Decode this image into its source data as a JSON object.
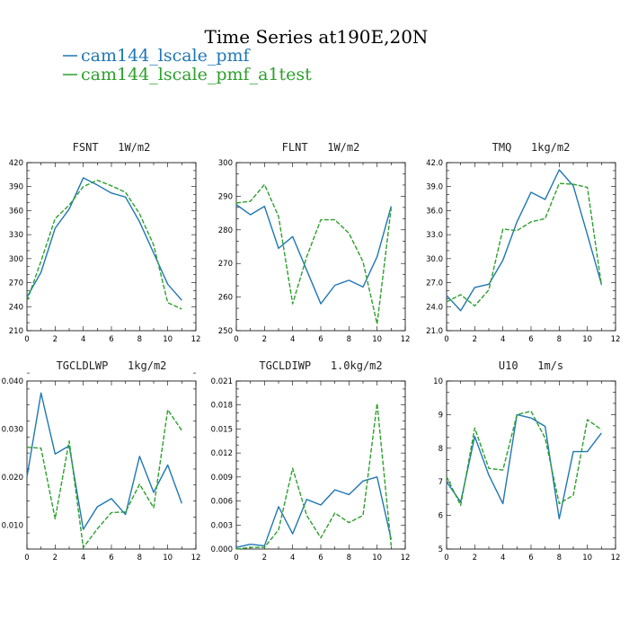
{
  "page": {
    "title": "Time Series at190E,20N"
  },
  "legend": [
    {
      "label": "cam144_lscale_pmf",
      "color": "#1f77b4",
      "dash": "solid"
    },
    {
      "label": "cam144_lscale_pmf_a1test",
      "color": "#2ca02c",
      "dash": "dashed"
    }
  ],
  "chart_data": [
    {
      "type": "line",
      "title": "FSNT   1W/m2",
      "x": [
        0,
        1,
        2,
        3,
        4,
        5,
        6,
        7,
        8,
        9,
        10,
        11
      ],
      "xlim": [
        0,
        12
      ],
      "xticks": [
        "0",
        "2",
        "4",
        "6",
        "8",
        "10",
        "12"
      ],
      "ylim": [
        210,
        420
      ],
      "yticks": [
        "210",
        "240",
        "270",
        "300",
        "330",
        "360",
        "390",
        "420"
      ],
      "series": [
        {
          "color": "#1f77b4",
          "values": [
            252,
            283,
            338,
            362,
            401,
            392,
            382,
            377,
            346,
            307,
            268,
            248
          ]
        },
        {
          "color": "#2ca02c",
          "values": [
            247,
            297,
            350,
            367,
            390,
            398,
            391,
            383,
            356,
            317,
            245,
            237
          ]
        }
      ]
    },
    {
      "type": "line",
      "title": "FLNT   1W/m2",
      "x": [
        0,
        1,
        2,
        3,
        4,
        5,
        6,
        7,
        8,
        9,
        10,
        11
      ],
      "xlim": [
        0,
        12
      ],
      "xticks": [
        "0",
        "2",
        "4",
        "6",
        "8",
        "10",
        "12"
      ],
      "ylim": [
        250,
        300
      ],
      "yticks": [
        "250",
        "260",
        "270",
        "280",
        "290",
        "300"
      ],
      "series": [
        {
          "color": "#1f77b4",
          "values": [
            287.5,
            284.5,
            287,
            274.5,
            278,
            268,
            258,
            263.5,
            265,
            263,
            272,
            287
          ]
        },
        {
          "color": "#2ca02c",
          "values": [
            288,
            288.5,
            293.5,
            284,
            258,
            272,
            283,
            283,
            279,
            270.5,
            252,
            286.5
          ]
        }
      ]
    },
    {
      "type": "line",
      "title": "TMQ   1kg/m2",
      "x": [
        0,
        1,
        2,
        3,
        4,
        5,
        6,
        7,
        8,
        9,
        10,
        11
      ],
      "xlim": [
        0,
        12
      ],
      "xticks": [
        "0",
        "2",
        "4",
        "6",
        "8",
        "10",
        "12"
      ],
      "ylim": [
        21.0,
        42.0
      ],
      "yticks": [
        "21.0",
        "24.0",
        "27.0",
        "30.0",
        "33.0",
        "36.0",
        "39.0",
        "42.0"
      ],
      "series": [
        {
          "color": "#1f77b4",
          "values": [
            25.4,
            23.5,
            26.4,
            26.8,
            29.8,
            34.6,
            38.3,
            37.4,
            41.1,
            39.1,
            33.0,
            26.8
          ]
        },
        {
          "color": "#2ca02c",
          "values": [
            24.6,
            25.5,
            24.1,
            26.1,
            33.7,
            33.5,
            34.6,
            35.0,
            39.4,
            39.3,
            38.9,
            26.7
          ]
        }
      ]
    },
    {
      "type": "line",
      "title": "TGCLDLWP   1kg/m2",
      "x": [
        0,
        1,
        2,
        3,
        4,
        5,
        6,
        7,
        8,
        9,
        10,
        11
      ],
      "xlim": [
        0,
        12
      ],
      "xticks": [
        "0",
        "2",
        "4",
        "6",
        "8",
        "10",
        "12"
      ],
      "ylim": [
        0.005,
        0.04
      ],
      "yticks": [
        "0.010",
        "0.020",
        "0.030",
        "0.040"
      ],
      "series": [
        {
          "color": "#1f77b4",
          "values": [
            0.02,
            0.0375,
            0.0248,
            0.0265,
            0.0091,
            0.0138,
            0.0155,
            0.0122,
            0.0243,
            0.0168,
            0.0225,
            0.0145
          ]
        },
        {
          "color": "#2ca02c",
          "values": [
            0.0262,
            0.026,
            0.0113,
            0.0275,
            0.0053,
            0.0092,
            0.0126,
            0.0127,
            0.0185,
            0.0136,
            0.034,
            0.0297
          ]
        }
      ]
    },
    {
      "type": "line",
      "title": "TGCLDIWP   1.0kg/m2",
      "x": [
        0,
        1,
        2,
        3,
        4,
        5,
        6,
        7,
        8,
        9,
        10,
        11
      ],
      "xlim": [
        0,
        12
      ],
      "xticks": [
        "0",
        "2",
        "4",
        "6",
        "8",
        "10",
        "12"
      ],
      "ylim": [
        0.0,
        0.021
      ],
      "yticks": [
        "0.000",
        "0.003",
        "0.006",
        "0.009",
        "0.012",
        "0.015",
        "0.018",
        "0.021"
      ],
      "series": [
        {
          "color": "#1f77b4",
          "values": [
            0.0002,
            0.0006,
            0.0004,
            0.0053,
            0.0019,
            0.0062,
            0.0055,
            0.0074,
            0.0068,
            0.0085,
            0.009,
            0.0012
          ]
        },
        {
          "color": "#2ca02c",
          "values": [
            0.0,
            0.0002,
            0.0002,
            0.0024,
            0.0101,
            0.0042,
            0.0014,
            0.0045,
            0.0033,
            0.0042,
            0.0182,
            0.0004
          ]
        }
      ]
    },
    {
      "type": "line",
      "title": "U10   1m/s",
      "x": [
        0,
        1,
        2,
        3,
        4,
        5,
        6,
        7,
        8,
        9,
        10,
        11
      ],
      "xlim": [
        0,
        12
      ],
      "xticks": [
        "0",
        "2",
        "4",
        "6",
        "8",
        "10",
        "12"
      ],
      "ylim": [
        5,
        10
      ],
      "yticks": [
        "5",
        "6",
        "7",
        "8",
        "9",
        "10"
      ],
      "series": [
        {
          "color": "#1f77b4",
          "values": [
            7.0,
            6.4,
            8.35,
            7.2,
            6.35,
            9.0,
            8.9,
            8.65,
            5.9,
            7.9,
            7.9,
            8.45
          ]
        },
        {
          "color": "#2ca02c",
          "values": [
            7.15,
            6.3,
            8.6,
            7.4,
            7.35,
            9.0,
            9.1,
            8.3,
            6.35,
            6.6,
            8.85,
            8.55
          ]
        }
      ]
    }
  ]
}
